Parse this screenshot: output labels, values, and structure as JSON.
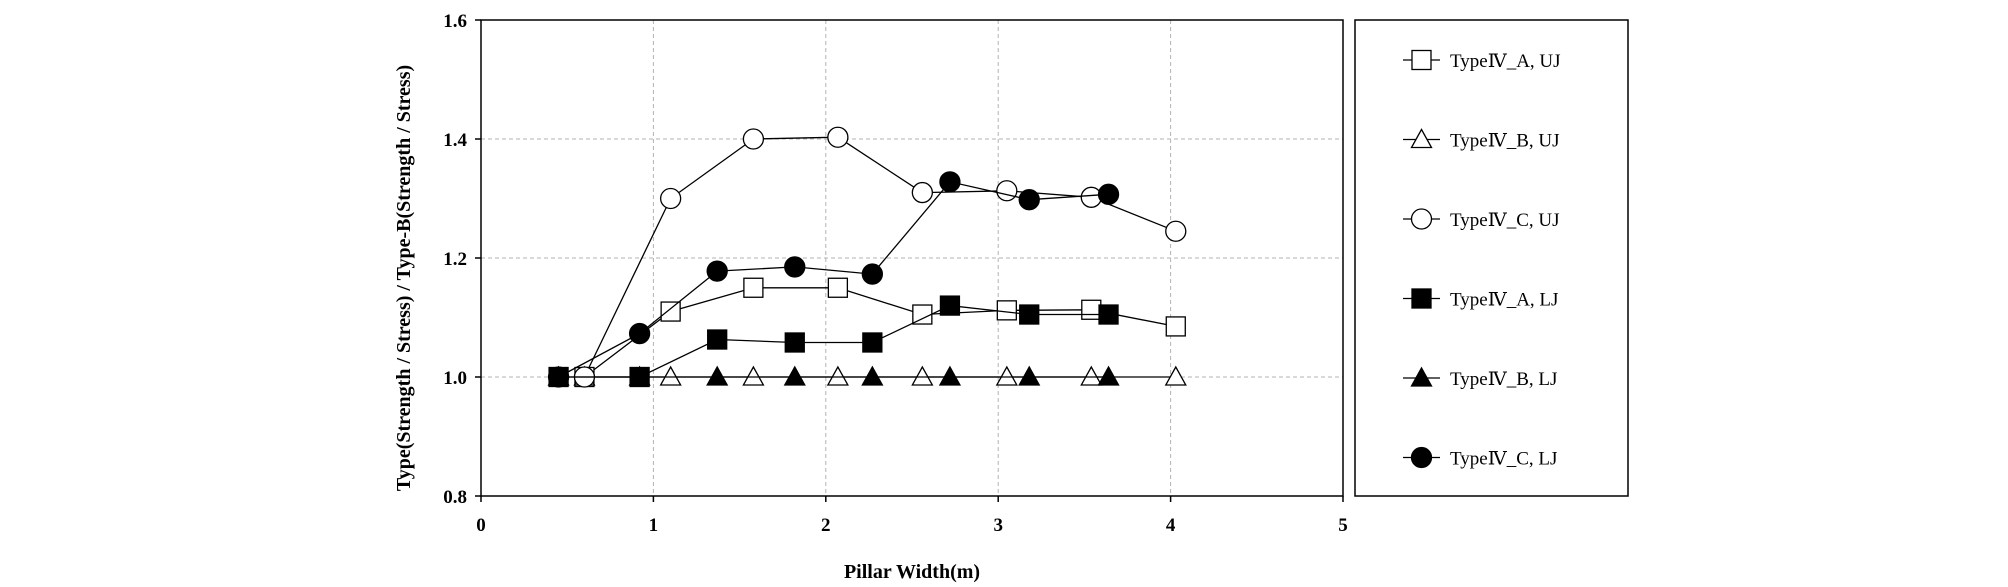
{
  "chart_data": {
    "type": "line",
    "xlabel": "Pillar Width(m)",
    "ylabel": "Type(Strength / Stress) / Type-B(Strength / Stress)",
    "xlim": [
      0,
      5
    ],
    "ylim": [
      0.8,
      1.6
    ],
    "xticks": [
      "0",
      "1",
      "2",
      "3",
      "4",
      "5"
    ],
    "yticks": [
      "0.8",
      "1.0",
      "1.2",
      "1.4",
      "1.6"
    ],
    "grid": true,
    "legend_position": "right",
    "series": [
      {
        "name": "TypeⅣ_A, UJ",
        "marker": "square",
        "filled": false,
        "x": [
          0.6,
          1.1,
          1.58,
          2.07,
          2.56,
          3.05,
          3.54,
          4.03
        ],
        "y": [
          1.0,
          1.11,
          1.15,
          1.15,
          1.105,
          1.112,
          1.113,
          1.085
        ]
      },
      {
        "name": "TypeⅣ_B, UJ",
        "marker": "triangle",
        "filled": false,
        "x": [
          0.6,
          1.1,
          1.58,
          2.07,
          2.56,
          3.05,
          3.54,
          4.03
        ],
        "y": [
          1.0,
          1.0,
          1.0,
          1.0,
          1.0,
          1.0,
          1.0,
          1.0
        ]
      },
      {
        "name": "TypeⅣ_C, UJ",
        "marker": "circle",
        "filled": false,
        "x": [
          0.6,
          1.1,
          1.58,
          2.07,
          2.56,
          3.05,
          3.54,
          4.03
        ],
        "y": [
          1.0,
          1.3,
          1.4,
          1.403,
          1.31,
          1.313,
          1.302,
          1.245
        ]
      },
      {
        "name": "TypeⅣ_A, LJ",
        "marker": "square",
        "filled": true,
        "x": [
          0.45,
          0.92,
          1.37,
          1.82,
          2.27,
          2.72,
          3.18,
          3.64
        ],
        "y": [
          1.0,
          1.0,
          1.063,
          1.058,
          1.058,
          1.12,
          1.105,
          1.105
        ]
      },
      {
        "name": "TypeⅣ_B, LJ",
        "marker": "triangle",
        "filled": true,
        "x": [
          0.45,
          0.92,
          1.37,
          1.82,
          2.27,
          2.72,
          3.18,
          3.64
        ],
        "y": [
          1.0,
          1.0,
          1.0,
          1.0,
          1.0,
          1.0,
          1.0,
          1.0
        ]
      },
      {
        "name": "TypeⅣ_C, LJ",
        "marker": "circle",
        "filled": true,
        "x": [
          0.45,
          0.92,
          1.37,
          1.82,
          2.27,
          2.72,
          3.18,
          3.64
        ],
        "y": [
          1.0,
          1.073,
          1.178,
          1.185,
          1.173,
          1.328,
          1.298,
          1.307
        ]
      }
    ]
  },
  "colors": {
    "line": "#000000",
    "grid": "#b3b3b3",
    "marker_fill_open": "#ffffff",
    "marker_fill_solid": "#000000"
  }
}
